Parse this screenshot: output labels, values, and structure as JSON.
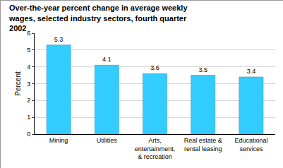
{
  "chart_data": {
    "type": "bar",
    "title": "Over-the-year percent change in average weekly wages, selected industry sectors, fourth quarter 2002",
    "y_label": "Percent",
    "categories": [
      "Mining",
      "Utilities",
      "Arts, entertainment, & recreation",
      "Real estate & rental leasing",
      "Educational services"
    ],
    "values": [
      5.3,
      4.1,
      3.6,
      3.5,
      3.4
    ],
    "color": "#33ccff",
    "ylim": [
      0,
      6
    ],
    "yticks": [
      0,
      1,
      2,
      3,
      4,
      5,
      6
    ],
    "grid": true,
    "data_labels": true
  }
}
